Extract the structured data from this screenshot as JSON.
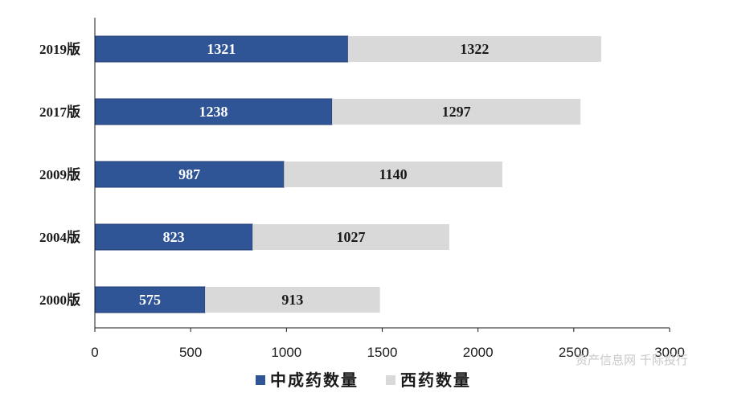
{
  "chart_data": {
    "type": "bar",
    "orientation": "horizontal",
    "stacked": true,
    "categories": [
      "2019版",
      "2017版",
      "2009版",
      "2004版",
      "2000版"
    ],
    "series": [
      {
        "name": "中成药数量",
        "values": [
          1321,
          1238,
          987,
          823,
          575
        ],
        "color": "#2f5597"
      },
      {
        "name": "西药数量",
        "values": [
          1322,
          1297,
          1140,
          1027,
          913
        ],
        "color": "#d9d9d9"
      }
    ],
    "xlim": [
      0,
      3000
    ],
    "xticks": [
      0,
      500,
      1000,
      1500,
      2000,
      2500,
      3000
    ],
    "grid": false,
    "legend_position": "bottom"
  },
  "watermark": "资产信息网 千际投行"
}
